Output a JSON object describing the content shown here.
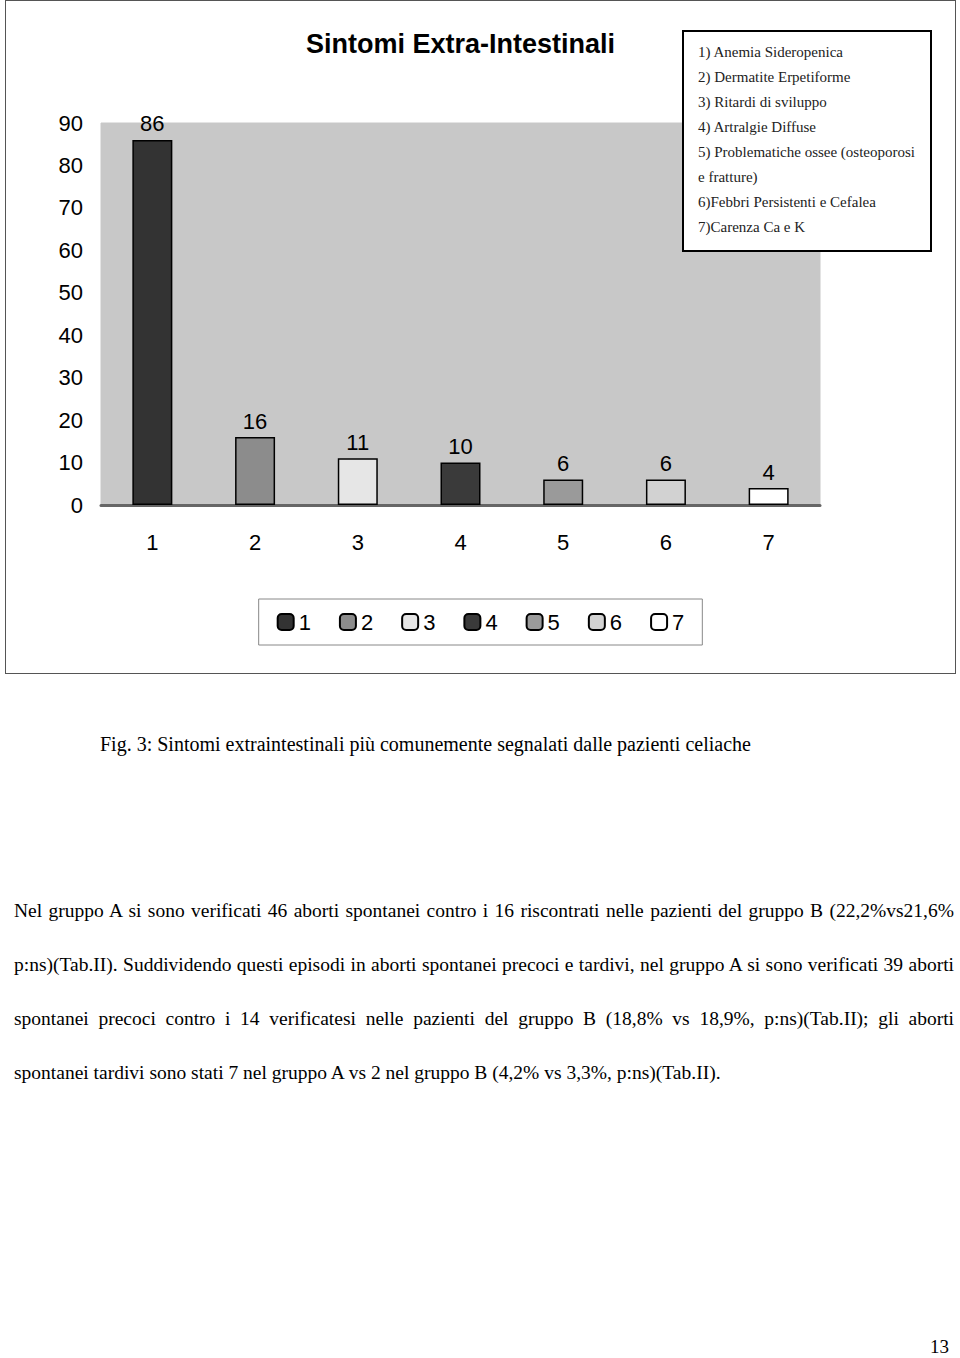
{
  "chart_data": {
    "type": "bar",
    "title": "Sintomi Extra-Intestinali",
    "categories": [
      "1",
      "2",
      "3",
      "4",
      "5",
      "6",
      "7"
    ],
    "values": [
      86,
      16,
      11,
      10,
      6,
      6,
      4
    ],
    "colors": [
      "#333333",
      "#8c8c8c",
      "#e6e6e6",
      "#3a3a3a",
      "#9a9a9a",
      "#d2d2d2",
      "#ffffff"
    ],
    "ylim": [
      0,
      90
    ],
    "yticks": [
      0,
      10,
      20,
      30,
      40,
      50,
      60,
      70,
      80,
      90
    ],
    "grid": false,
    "legend": "bottom",
    "data_labels": true,
    "annotations": [
      "1) Anemia Sideropenica",
      "2) Dermatite Erpetiforme",
      "3) Ritardi di sviluppo",
      "4) Artralgie Diffuse",
      "5) Problematiche ossee (osteoporosi e fratture)",
      "6)Febbri Persistenti e Cefalea",
      "7)Carenza Ca e K"
    ]
  },
  "caption": "Fig. 3: Sintomi extraintestinali più comunemente segnalati dalle pazienti celiache",
  "paragraph": "Nel gruppo A si sono verificati 46 aborti spontanei contro i 16 riscontrati nelle pazienti del gruppo B (22,2%vs21,6% p:ns)(Tab.II). Suddividendo questi episodi in aborti spontanei precoci e tardivi, nel gruppo A si sono verificati 39 aborti spontanei precoci contro i 14 verificatesi nelle pazienti del gruppo B (18,8% vs 18,9%, p:ns)(Tab.II); gli aborti spontanei tardivi sono stati 7 nel gruppo A vs 2 nel gruppo B (4,2% vs 3,3%, p:ns)(Tab.II).",
  "page_number": "13"
}
